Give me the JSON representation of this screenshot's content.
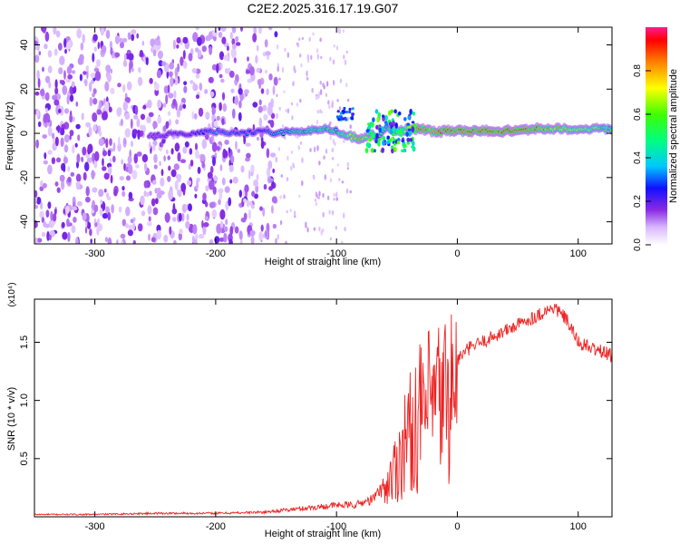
{
  "title": "C2E2.2025.316.17.19.G07",
  "chart_data": [
    {
      "type": "heatmap",
      "xlabel": "Height of straight line (km)",
      "ylabel": "Frequency (Hz)",
      "xlim": [
        -350,
        128
      ],
      "ylim": [
        -50,
        48
      ],
      "xticks": [
        -300,
        -200,
        -100,
        0,
        100
      ],
      "yticks": [
        -40,
        -20,
        0,
        20,
        40
      ],
      "xtick_labels": [
        "-300",
        "-200",
        "-100",
        "0",
        "100"
      ],
      "ytick_labels": [
        "-40",
        "-20",
        "0",
        "20",
        "40"
      ],
      "colorbar": {
        "label": "Normalized spectral amplitude",
        "range": [
          0,
          1
        ],
        "ticks": [
          0.0,
          0.2,
          0.4,
          0.6,
          0.8
        ],
        "tick_labels": [
          "0.0",
          "0.2",
          "0.4",
          "0.6",
          "0.8"
        ]
      },
      "noise_region_x": [
        -350,
        -150
      ],
      "sparse_region_x": [
        -150,
        -88
      ],
      "signal_track": {
        "x": [
          -255,
          -220,
          -200,
          -180,
          -160,
          -150,
          -130,
          -110,
          -100,
          -90,
          -80,
          -72,
          -65,
          -58,
          -50,
          -40,
          -30,
          -20,
          -10,
          0,
          20,
          40,
          60,
          80,
          100,
          128
        ],
        "frequency": [
          -1,
          0,
          1,
          0,
          1,
          0,
          1,
          2,
          1,
          -1,
          -3,
          0,
          -2,
          3,
          1,
          2,
          2,
          1,
          1,
          1,
          1,
          1,
          2,
          2,
          2,
          2
        ],
        "amplitude": [
          0.15,
          0.22,
          0.35,
          0.3,
          0.3,
          0.45,
          0.55,
          0.6,
          0.55,
          0.75,
          0.85,
          0.6,
          0.5,
          0.55,
          0.65,
          0.8,
          0.9,
          0.92,
          0.95,
          0.97,
          0.97,
          0.97,
          0.96,
          0.8,
          0.75,
          0.6
        ]
      }
    },
    {
      "type": "line",
      "xlabel": "Height of straight line (km)",
      "ylabel": "SNR (10 * v/v)",
      "yscale_label": "(x10⁴)",
      "xlim": [
        -350,
        128
      ],
      "ylim": [
        0,
        1.87
      ],
      "xticks": [
        -300,
        -200,
        -100,
        0,
        100
      ],
      "yticks": [
        0.5,
        1.0,
        1.5
      ],
      "xtick_labels": [
        "-300",
        "-200",
        "-100",
        "0",
        "100"
      ],
      "ytick_labels": [
        "0.5",
        "1.0",
        "1.5"
      ],
      "color": "#ee2222",
      "series": [
        {
          "name": "SNR",
          "x": [
            -350,
            -300,
            -250,
            -200,
            -160,
            -140,
            -120,
            -100,
            -85,
            -70,
            -62,
            -55,
            -50,
            -45,
            -40,
            -35,
            -30,
            -25,
            -20,
            -15,
            -10,
            -5,
            0,
            10,
            20,
            30,
            40,
            50,
            60,
            70,
            80,
            90,
            95,
            100,
            110,
            120,
            128
          ],
          "y": [
            0.02,
            0.02,
            0.03,
            0.03,
            0.04,
            0.06,
            0.08,
            0.1,
            0.1,
            0.15,
            0.25,
            0.4,
            0.55,
            0.75,
            0.85,
            0.95,
            1.05,
            1.1,
            1.15,
            1.2,
            1.25,
            1.3,
            1.35,
            1.45,
            1.5,
            1.55,
            1.6,
            1.65,
            1.7,
            1.75,
            1.8,
            1.7,
            1.6,
            1.5,
            1.45,
            1.42,
            1.38
          ]
        }
      ]
    }
  ]
}
